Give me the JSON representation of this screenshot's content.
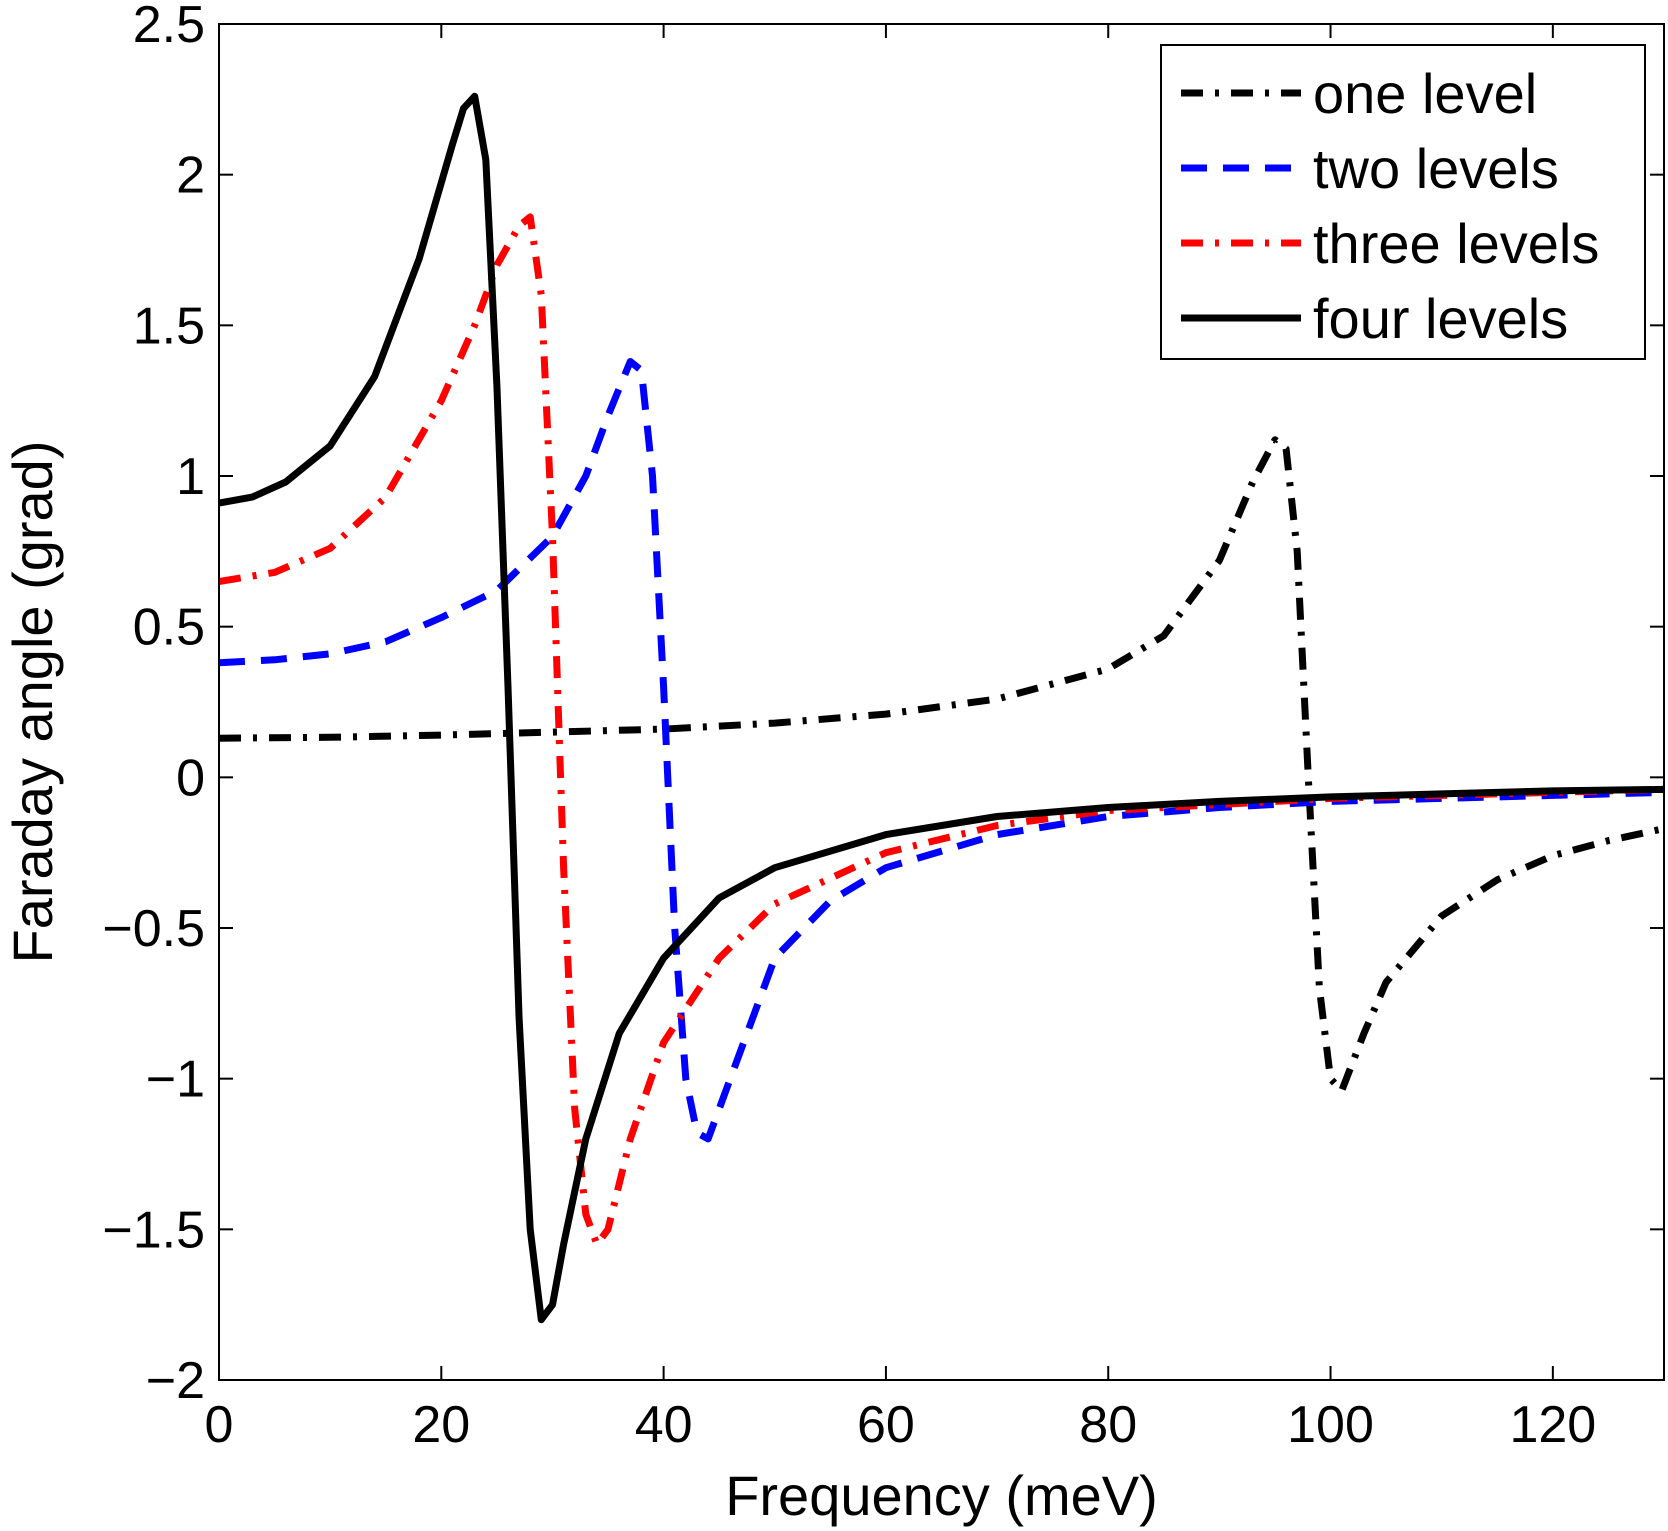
{
  "chart_data": {
    "type": "line",
    "title": "",
    "xlabel": "Frequency  (meV)",
    "ylabel": "Faraday angle (grad)",
    "xlim": [
      0,
      130
    ],
    "ylim": [
      -2,
      2.5
    ],
    "xticks": [
      0,
      20,
      40,
      60,
      80,
      100,
      120
    ],
    "yticks": [
      -2,
      -1.5,
      -1,
      -0.5,
      0,
      0.5,
      1,
      1.5,
      2,
      2.5
    ],
    "xtick_labels": [
      "0",
      "20",
      "40",
      "60",
      "80",
      "100",
      "120"
    ],
    "ytick_labels": [
      "−2",
      "−1.5",
      "−1",
      "−0.5",
      "0",
      "0.5",
      "1",
      "1.5",
      "2",
      "2.5"
    ],
    "grid": false,
    "legend_position": "top-right",
    "series": [
      {
        "name": "one level",
        "color": "#000000",
        "style": "dash-dot",
        "x": [
          0,
          10,
          20,
          30,
          40,
          50,
          60,
          70,
          80,
          85,
          90,
          93,
          95,
          96,
          97,
          98,
          99,
          100,
          101,
          103,
          105,
          110,
          115,
          120,
          125,
          130
        ],
        "y": [
          0.13,
          0.133,
          0.14,
          0.15,
          0.16,
          0.18,
          0.21,
          0.26,
          0.36,
          0.47,
          0.72,
          0.98,
          1.12,
          1.09,
          0.75,
          0.0,
          -0.7,
          -1.0,
          -1.04,
          -0.85,
          -0.68,
          -0.46,
          -0.34,
          -0.26,
          -0.21,
          -0.17
        ]
      },
      {
        "name": "two levels",
        "color": "#0000ff",
        "style": "dashed",
        "x": [
          0,
          5,
          10,
          15,
          20,
          25,
          30,
          33,
          35,
          37,
          38,
          39,
          40,
          41,
          42,
          43,
          44,
          46,
          50,
          55,
          60,
          70,
          80,
          90,
          100,
          110,
          120,
          130
        ],
        "y": [
          0.38,
          0.39,
          0.41,
          0.45,
          0.53,
          0.62,
          0.8,
          1.0,
          1.2,
          1.38,
          1.35,
          1.0,
          0.3,
          -0.5,
          -1.0,
          -1.18,
          -1.2,
          -1.0,
          -0.6,
          -0.41,
          -0.3,
          -0.19,
          -0.13,
          -0.1,
          -0.08,
          -0.07,
          -0.06,
          -0.05
        ]
      },
      {
        "name": "three levels",
        "color": "#ff0000",
        "style": "dash-dot",
        "x": [
          0,
          5,
          10,
          15,
          20,
          23,
          25,
          27,
          28,
          29,
          30,
          31,
          32,
          33,
          34,
          35,
          37,
          40,
          45,
          50,
          60,
          70,
          80,
          90,
          100,
          110,
          120,
          130
        ],
        "y": [
          0.65,
          0.68,
          0.76,
          0.93,
          1.25,
          1.5,
          1.7,
          1.83,
          1.86,
          1.6,
          0.8,
          -0.3,
          -1.1,
          -1.45,
          -1.55,
          -1.5,
          -1.2,
          -0.88,
          -0.6,
          -0.42,
          -0.25,
          -0.16,
          -0.11,
          -0.09,
          -0.07,
          -0.06,
          -0.05,
          -0.04
        ]
      },
      {
        "name": "four levels",
        "color": "#000000",
        "style": "solid",
        "x": [
          0,
          3,
          6,
          10,
          14,
          18,
          21,
          22,
          23,
          24,
          25,
          26,
          27,
          28,
          29,
          30,
          31,
          33,
          36,
          40,
          45,
          50,
          60,
          70,
          80,
          90,
          100,
          110,
          120,
          130
        ],
        "y": [
          0.91,
          0.93,
          0.98,
          1.1,
          1.33,
          1.72,
          2.1,
          2.22,
          2.26,
          2.05,
          1.3,
          0.3,
          -0.8,
          -1.5,
          -1.8,
          -1.75,
          -1.55,
          -1.2,
          -0.85,
          -0.6,
          -0.4,
          -0.3,
          -0.19,
          -0.13,
          -0.1,
          -0.08,
          -0.065,
          -0.055,
          -0.045,
          -0.04
        ]
      }
    ]
  }
}
